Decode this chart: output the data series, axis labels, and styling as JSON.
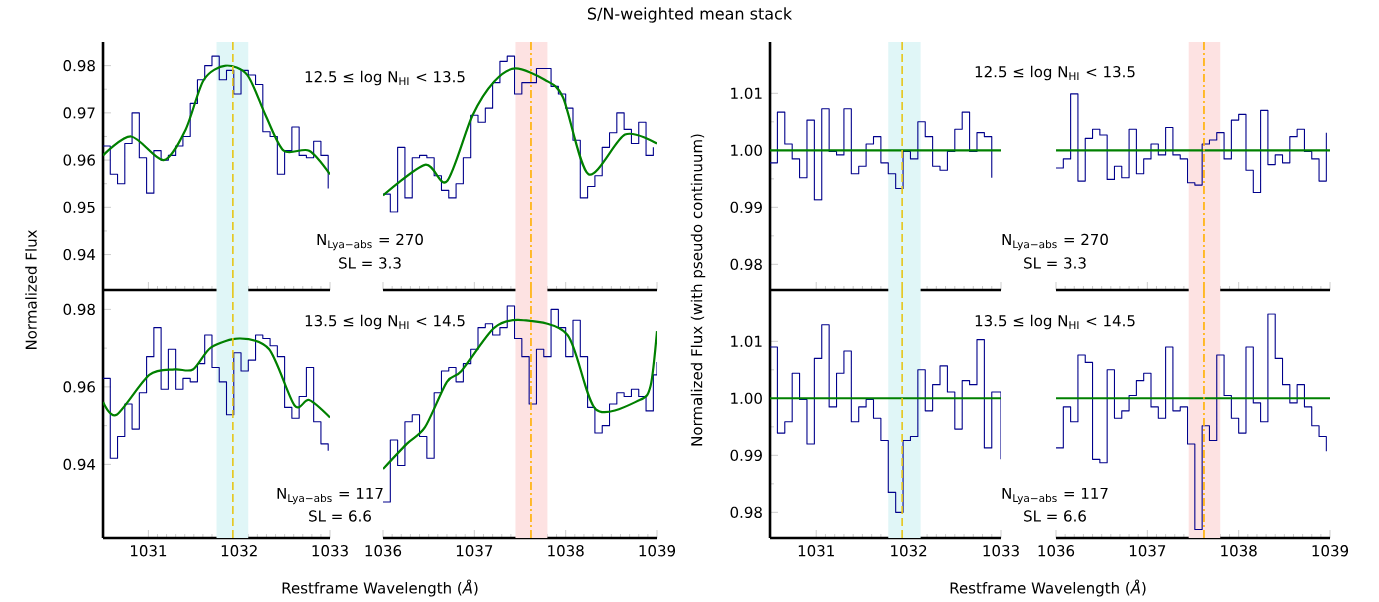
{
  "chart_data": [
    {
      "type": "step",
      "ylabel": "Normalized Flux",
      "xlim": [
        1030.5,
        1033
      ],
      "ylim": [
        0.9325,
        0.985
      ],
      "xticks": [
        1031,
        1032,
        1033
      ],
      "yticks": [
        0.94,
        0.95,
        0.96,
        0.97,
        0.98
      ],
      "tick_labels": "y",
      "ref_lines": [
        {
          "axis": "x",
          "value": 1031.93,
          "color": "#e6c619",
          "line_style": "dashed"
        }
      ],
      "bands": [
        {
          "axis": "x",
          "from": 1031.75,
          "to": 1032.1,
          "color": "#e0f6f7"
        }
      ],
      "series": [
        {
          "type": "step",
          "color": "#00008b",
          "x": [
            1030.5,
            1030.58,
            1030.66,
            1030.74,
            1030.82,
            1030.9,
            1030.98,
            1031.06,
            1031.14,
            1031.22,
            1031.3,
            1031.38,
            1031.46,
            1031.54,
            1031.62,
            1031.7,
            1031.78,
            1031.86,
            1031.94,
            1032.02,
            1032.1,
            1032.18,
            1032.26,
            1032.34,
            1032.42,
            1032.5,
            1032.58,
            1032.66,
            1032.74,
            1032.82,
            1032.9,
            1032.98
          ],
          "values": [
            0.963,
            0.957,
            0.955,
            0.9635,
            0.97,
            0.9605,
            0.953,
            0.962,
            0.96,
            0.961,
            0.963,
            0.965,
            0.972,
            0.977,
            0.98,
            0.982,
            0.977,
            0.979,
            0.974,
            0.979,
            0.978,
            0.976,
            0.966,
            0.965,
            0.957,
            0.962,
            0.967,
            0.961,
            0.9605,
            0.964,
            0.961,
            0.954
          ]
        },
        {
          "type": "line",
          "color": "#008000",
          "x": [
            1030.5,
            1030.81,
            1031.17,
            1031.41,
            1031.61,
            1031.85,
            1032.09,
            1032.29,
            1032.49,
            1032.77,
            1033.0
          ],
          "values": [
            0.961,
            0.965,
            0.96,
            0.9665,
            0.977,
            0.98,
            0.978,
            0.9695,
            0.962,
            0.962,
            0.957
          ]
        }
      ]
    },
    {
      "type": "step",
      "title": "S/N-weighted mean stack",
      "xlim": [
        1036,
        1039
      ],
      "ylim": [
        0.9325,
        0.985
      ],
      "xticks": [
        1036,
        1037,
        1038,
        1039
      ],
      "tick_labels": false,
      "annotations": [
        "12.5 ≤ log N$_{HI}$ < 13.5",
        "N$_{Lya−abs}$ = 270",
        "SL = 3.3"
      ],
      "ref_lines": [
        {
          "axis": "x",
          "value": 1037.62,
          "color": "#ffb000",
          "line_style": "dashdot"
        }
      ],
      "bands": [
        {
          "axis": "x",
          "from": 1037.45,
          "to": 1037.8,
          "color": "#fde2e2"
        }
      ],
      "series": [
        {
          "type": "step",
          "color": "#00008b",
          "x": [
            1036,
            1036.08,
            1036.16,
            1036.24,
            1036.32,
            1036.4,
            1036.48,
            1036.56,
            1036.64,
            1036.72,
            1036.8,
            1036.88,
            1036.96,
            1037.04,
            1037.12,
            1037.2,
            1037.28,
            1037.36,
            1037.44,
            1037.52,
            1037.6,
            1037.68,
            1037.76,
            1037.84,
            1037.92,
            1038,
            1038.08,
            1038.16,
            1038.24,
            1038.32,
            1038.4,
            1038.48,
            1038.56,
            1038.64,
            1038.72,
            1038.8,
            1038.88,
            1038.96
          ],
          "values": [
            0.9528,
            0.949,
            0.9627,
            0.952,
            0.9605,
            0.961,
            0.9605,
            0.9567,
            0.9536,
            0.952,
            0.955,
            0.9605,
            0.9695,
            0.968,
            0.971,
            0.9764,
            0.9809,
            0.982,
            0.974,
            0.9764,
            0.9764,
            0.9794,
            0.9794,
            0.9756,
            0.974,
            0.971,
            0.9642,
            0.952,
            0.9544,
            0.9567,
            0.9627,
            0.9658,
            0.97,
            0.9665,
            0.9635,
            0.968,
            0.961,
            0.9627
          ]
        },
        {
          "type": "line",
          "color": "#008000",
          "x": [
            1036,
            1036.46,
            1036.7,
            1036.98,
            1037.22,
            1037.45,
            1037.77,
            1037.97,
            1038.25,
            1038.65,
            1039
          ],
          "values": [
            0.9525,
            0.959,
            0.9555,
            0.9695,
            0.9767,
            0.9794,
            0.977,
            0.9733,
            0.957,
            0.9654,
            0.9635
          ]
        }
      ]
    },
    {
      "type": "step",
      "ylabel": "Normalized Flux (with pseudo continuum)",
      "xlim": [
        1030.5,
        1033
      ],
      "ylim": [
        0.9755,
        1.019
      ],
      "xticks": [
        1031,
        1032,
        1033
      ],
      "yticks": [
        0.98,
        0.99,
        {
          "value": 1,
          "label": "1.00"
        },
        1.01
      ],
      "tick_labels": "y",
      "ref_lines": [
        {
          "axis": "x",
          "value": 1031.93,
          "color": "#e6c619",
          "line_style": "dashed"
        }
      ],
      "bands": [
        {
          "axis": "x",
          "from": 1031.78,
          "to": 1032.13,
          "color": "#e0f6f7"
        }
      ],
      "series": [
        {
          "type": "step",
          "color": "#00008b",
          "x": [
            1030.5,
            1030.58,
            1030.66,
            1030.74,
            1030.82,
            1030.9,
            1030.98,
            1031.06,
            1031.14,
            1031.22,
            1031.3,
            1031.38,
            1031.46,
            1031.54,
            1031.62,
            1031.7,
            1031.78,
            1031.86,
            1031.94,
            1032.02,
            1032.1,
            1032.18,
            1032.26,
            1032.34,
            1032.42,
            1032.5,
            1032.58,
            1032.66,
            1032.74,
            1032.82,
            1032.9
          ],
          "values": [
            0.9978,
            1.0067,
            1.0011,
            0.9985,
            0.9952,
            1.0053,
            0.9913,
            1.0073,
            0.9998,
            0.9992,
            1.0073,
            0.9959,
            0.9972,
            1.0011,
            1.0024,
            0.9978,
            0.9959,
            0.9933,
            0.9998,
            0.9985,
            1.005,
            1.0024,
            0.9972,
            0.9965,
            0.9998,
            1.0037,
            1.0067,
            0.9998,
            1.0031,
            1.0024,
            0.9952
          ]
        },
        {
          "type": "line",
          "color": "#008000",
          "x": [
            1030.5,
            1033
          ],
          "values": [
            1,
            1
          ]
        }
      ]
    },
    {
      "type": "step",
      "xlim": [
        1036,
        1039
      ],
      "ylim": [
        0.9755,
        1.019
      ],
      "xticks": [
        1036,
        1037,
        1038,
        1039
      ],
      "tick_labels": false,
      "annotations": [
        "12.5 ≤ log N$_{HI}$ < 13.5",
        "N$_{Lya−abs}$ = 270",
        "SL = 3.3"
      ],
      "ref_lines": [
        {
          "axis": "x",
          "value": 1037.62,
          "color": "#ffb000",
          "line_style": "dashdot"
        }
      ],
      "bands": [
        {
          "axis": "x",
          "from": 1037.45,
          "to": 1037.8,
          "color": "#fde2e2"
        }
      ],
      "series": [
        {
          "type": "step",
          "color": "#00008b",
          "x": [
            1036,
            1036.08,
            1036.16,
            1036.24,
            1036.32,
            1036.4,
            1036.48,
            1036.56,
            1036.64,
            1036.72,
            1036.8,
            1036.88,
            1036.96,
            1037.04,
            1037.12,
            1037.2,
            1037.28,
            1037.36,
            1037.44,
            1037.52,
            1037.6,
            1037.68,
            1037.76,
            1037.84,
            1037.92,
            1038,
            1038.08,
            1038.16,
            1038.24,
            1038.32,
            1038.4,
            1038.48,
            1038.56,
            1038.64,
            1038.72,
            1038.8,
            1038.88,
            1038.96
          ],
          "values": [
            0.9969,
            0.9985,
            1.0099,
            0.9946,
            1.0021,
            1.0037,
            1.0027,
            0.9949,
            0.9972,
            0.9952,
            1.0037,
            0.9959,
            0.9985,
            1.0011,
            0.9992,
            1.004,
            0.9992,
            0.9985,
            0.9943,
            0.9939,
            1.0011,
            1.0018,
            1.0031,
            0.9985,
            1.0053,
            1.0063,
            0.9965,
            0.9926,
            1.007,
            0.9975,
            0.9992,
            0.9978,
            1.0024,
            1.0037,
            0.9998,
            0.9985,
            0.9946,
            1.0031
          ]
        },
        {
          "type": "line",
          "color": "#008000",
          "x": [
            1036,
            1039
          ],
          "values": [
            1,
            1
          ]
        }
      ]
    },
    {
      "type": "step",
      "xlabel": "Restframe Wavelength (*Å*)",
      "xlim": [
        1030.5,
        1033
      ],
      "ylim": [
        0.921,
        0.985
      ],
      "xticks": [
        1031,
        1032,
        1033
      ],
      "yticks": [
        0.94,
        0.96,
        0.98
      ],
      "ref_lines": [
        {
          "axis": "x",
          "value": 1031.93,
          "color": "#e6c619",
          "line_style": "dashed"
        }
      ],
      "bands": [
        {
          "axis": "x",
          "from": 1031.75,
          "to": 1032.1,
          "color": "#e0f6f7"
        }
      ],
      "series": [
        {
          "type": "step",
          "color": "#00008b",
          "x": [
            1030.5,
            1030.58,
            1030.66,
            1030.74,
            1030.82,
            1030.9,
            1030.98,
            1031.06,
            1031.14,
            1031.22,
            1031.3,
            1031.38,
            1031.46,
            1031.54,
            1031.62,
            1031.7,
            1031.78,
            1031.86,
            1031.94,
            1032.02,
            1032.1,
            1032.18,
            1032.26,
            1032.34,
            1032.42,
            1032.5,
            1032.58,
            1032.66,
            1032.74,
            1032.82,
            1032.9,
            1032.98
          ],
          "values": [
            0.9622,
            0.9416,
            0.9472,
            0.9556,
            0.9491,
            0.9585,
            0.9678,
            0.9753,
            0.9594,
            0.9697,
            0.9594,
            0.9622,
            0.9613,
            0.966,
            0.9734,
            0.965,
            0.9613,
            0.9528,
            0.9688,
            0.9641,
            0.9669,
            0.9734,
            0.9725,
            0.9706,
            0.9678,
            0.9547,
            0.9519,
            0.9575,
            0.965,
            0.951,
            0.9453,
            0.9435
          ]
        },
        {
          "type": "line",
          "color": "#008000",
          "x": [
            1030.5,
            1030.65,
            1031.01,
            1031.29,
            1031.49,
            1031.69,
            1032.01,
            1032.33,
            1032.61,
            1032.77,
            1033
          ],
          "values": [
            0.9561,
            0.9528,
            0.9631,
            0.9645,
            0.9645,
            0.9702,
            0.9725,
            0.9697,
            0.9552,
            0.9566,
            0.9521
          ]
        }
      ]
    },
    {
      "type": "step",
      "xlim": [
        1036,
        1039
      ],
      "ylim": [
        0.921,
        0.985
      ],
      "xticks": [
        1036,
        1037,
        1038,
        1039
      ],
      "tick_labels": "x",
      "annotations": [
        "13.5 ≤ log N$_{HI}$ < 14.5",
        "N$_{Lya−abs}$ = 117",
        "SL = 6.6"
      ],
      "ref_lines": [
        {
          "axis": "x",
          "value": 1037.62,
          "color": "#ffb000",
          "line_style": "dashdot"
        }
      ],
      "bands": [
        {
          "axis": "x",
          "from": 1037.45,
          "to": 1037.8,
          "color": "#fde2e2"
        }
      ],
      "series": [
        {
          "type": "step",
          "color": "#00008b",
          "x": [
            1036,
            1036.08,
            1036.16,
            1036.24,
            1036.32,
            1036.4,
            1036.48,
            1036.56,
            1036.64,
            1036.72,
            1036.8,
            1036.88,
            1036.96,
            1037.04,
            1037.12,
            1037.2,
            1037.28,
            1037.36,
            1037.44,
            1037.52,
            1037.6,
            1037.68,
            1037.76,
            1037.84,
            1037.92,
            1038,
            1038.08,
            1038.16,
            1038.24,
            1038.32,
            1038.4,
            1038.48,
            1038.56,
            1038.64,
            1038.72,
            1038.8,
            1038.88,
            1038.96,
            1039
          ],
          "values": [
            0.9303,
            0.9463,
            0.9397,
            0.951,
            0.9528,
            0.9472,
            0.9416,
            0.9585,
            0.9641,
            0.965,
            0.9613,
            0.966,
            0.9697,
            0.9753,
            0.9763,
            0.9734,
            0.9753,
            0.9809,
            0.9725,
            0.9678,
            0.9556,
            0.9697,
            0.9678,
            0.98,
            0.9753,
            0.9678,
            0.9772,
            0.9678,
            0.9547,
            0.9481,
            0.95,
            0.9556,
            0.9585,
            0.9575,
            0.9594,
            0.9575,
            0.9538,
            0.9631,
            0.9664
          ]
        },
        {
          "type": "line",
          "color": "#008000",
          "x": [
            1036,
            1036.26,
            1036.46,
            1036.7,
            1036.86,
            1037.22,
            1037.54,
            1038.02,
            1038.33,
            1038.81,
            1038.93,
            1039
          ],
          "values": [
            0.9388,
            0.9453,
            0.9496,
            0.9613,
            0.9641,
            0.9753,
            0.9772,
            0.9734,
            0.9542,
            0.9566,
            0.9603,
            0.9744
          ]
        }
      ]
    },
    {
      "type": "step",
      "xlabel": "Restframe Wavelength (*Å*)",
      "xlim": [
        1030.5,
        1033
      ],
      "ylim": [
        0.9755,
        1.019
      ],
      "xticks": [
        1031,
        1032,
        1033
      ],
      "yticks": [
        0.98,
        0.99,
        {
          "value": 1,
          "label": "1.00"
        },
        1.01
      ],
      "ref_lines": [
        {
          "axis": "x",
          "value": 1031.93,
          "color": "#e6c619",
          "line_style": "dashed"
        }
      ],
      "bands": [
        {
          "axis": "x",
          "from": 1031.78,
          "to": 1032.13,
          "color": "#e0f6f7"
        }
      ],
      "series": [
        {
          "type": "step",
          "color": "#00008b",
          "x": [
            1030.5,
            1030.58,
            1030.66,
            1030.74,
            1030.82,
            1030.9,
            1030.98,
            1031.06,
            1031.14,
            1031.22,
            1031.3,
            1031.38,
            1031.46,
            1031.54,
            1031.62,
            1031.7,
            1031.78,
            1031.86,
            1031.94,
            1032.02,
            1032.1,
            1032.18,
            1032.26,
            1032.34,
            1032.42,
            1032.5,
            1032.58,
            1032.66,
            1032.74,
            1032.82,
            1032.9,
            1033
          ],
          "values": [
            1.009,
            0.9939,
            0.9959,
            1.0044,
            0.9998,
            0.992,
            1.007,
            1.0129,
            0.9985,
            1.0044,
            1.0083,
            0.9959,
            0.9985,
            0.9998,
            0.9965,
            0.9926,
            0.9835,
            0.98,
            0.9926,
            0.9933,
            1.005,
            0.9978,
            1.0024,
            1.0057,
            1.0011,
            0.9946,
            1.0031,
            1.0024,
            1.0103,
            0.9913,
            1.0011,
            0.9893
          ]
        },
        {
          "type": "line",
          "color": "#008000",
          "x": [
            1030.5,
            1033
          ],
          "values": [
            1,
            1
          ]
        }
      ]
    },
    {
      "type": "step",
      "xlim": [
        1036,
        1039
      ],
      "ylim": [
        0.9755,
        1.019
      ],
      "xticks": [
        1036,
        1037,
        1038,
        1039
      ],
      "tick_labels": "x",
      "annotations": [
        "13.5 ≤ log N$_{HI}$ < 14.5",
        "N$_{Lya−abs}$ = 117",
        "SL = 6.6"
      ],
      "ref_lines": [
        {
          "axis": "x",
          "value": 1037.62,
          "color": "#ffb000",
          "line_style": "dashdot"
        }
      ],
      "bands": [
        {
          "axis": "x",
          "from": 1037.45,
          "to": 1037.8,
          "color": "#fde2e2"
        }
      ],
      "series": [
        {
          "type": "step",
          "color": "#00008b",
          "x": [
            1036,
            1036.08,
            1036.16,
            1036.24,
            1036.32,
            1036.4,
            1036.48,
            1036.56,
            1036.64,
            1036.72,
            1036.8,
            1036.88,
            1036.96,
            1037.04,
            1037.12,
            1037.2,
            1037.28,
            1037.36,
            1037.44,
            1037.52,
            1037.6,
            1037.68,
            1037.76,
            1037.84,
            1037.92,
            1038,
            1038.08,
            1038.16,
            1038.24,
            1038.32,
            1038.4,
            1038.48,
            1038.56,
            1038.64,
            1038.72,
            1038.8,
            1038.88,
            1038.96
          ],
          "values": [
            0.9913,
            0.9985,
            0.9959,
            1.0076,
            1.0063,
            0.9893,
            0.9887,
            1.005,
            0.9965,
            0.9978,
            1.0005,
            1.0031,
            1.0044,
            0.9985,
            0.9965,
            1.009,
            0.9978,
            0.9985,
            0.992,
            0.977,
            0.9952,
            0.9926,
            1.0076,
            1.0005,
            0.9965,
            0.9939,
            1.009,
            0.9992,
            0.9959,
            1.0148,
            1.007,
            1.0024,
            0.9992,
            1.0024,
            0.9985,
            0.9952,
            0.9933,
            0.9907
          ]
        },
        {
          "type": "line",
          "color": "#008000",
          "x": [
            1036,
            1039
          ],
          "values": [
            1,
            1
          ]
        }
      ]
    }
  ]
}
